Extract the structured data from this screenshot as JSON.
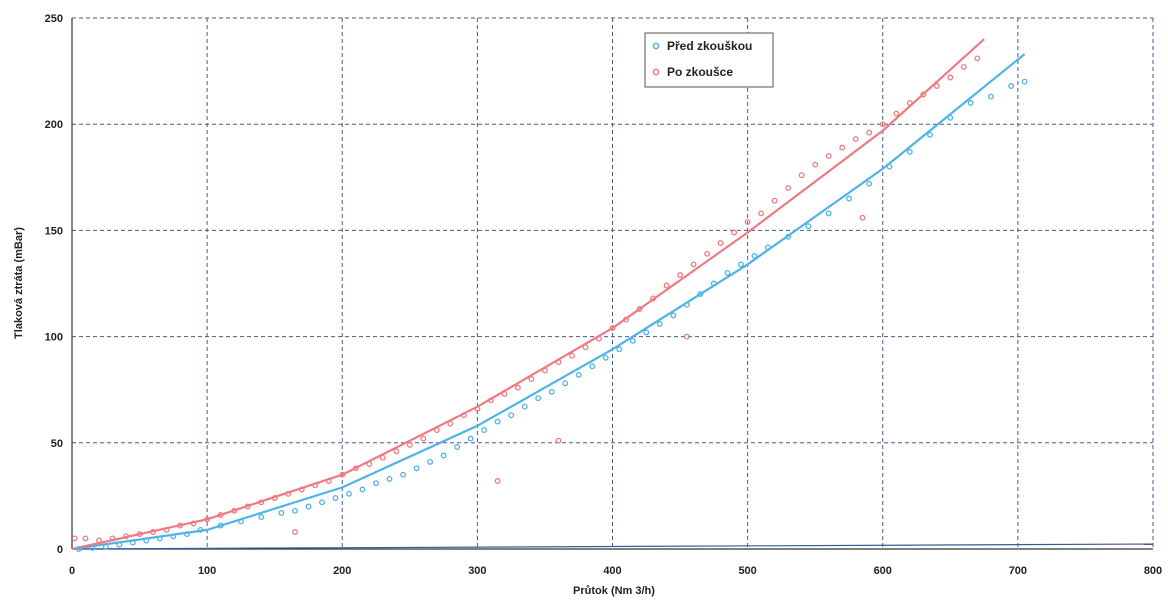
{
  "chart_data": {
    "type": "scatter",
    "title": "",
    "xlabel": "Průtok (Nm 3/h)",
    "ylabel": "Tlaková ztráta (mBar)",
    "xlim": [
      0,
      800
    ],
    "ylim": [
      0,
      250
    ],
    "xticks": [
      0,
      100,
      200,
      300,
      400,
      500,
      600,
      700,
      800
    ],
    "yticks": [
      0,
      50,
      100,
      150,
      200,
      250
    ],
    "grid": true,
    "legend_position": "top-right",
    "series": [
      {
        "name": "Před zkouškou",
        "color": "#4fb3e8",
        "points": [
          [
            5,
            0
          ],
          [
            15,
            0.5
          ],
          [
            25,
            1
          ],
          [
            35,
            2
          ],
          [
            45,
            3
          ],
          [
            55,
            4
          ],
          [
            65,
            5
          ],
          [
            75,
            6
          ],
          [
            85,
            7
          ],
          [
            95,
            9
          ],
          [
            110,
            11
          ],
          [
            125,
            13
          ],
          [
            140,
            15
          ],
          [
            155,
            17
          ],
          [
            165,
            18
          ],
          [
            175,
            20
          ],
          [
            185,
            22
          ],
          [
            195,
            24
          ],
          [
            205,
            26
          ],
          [
            215,
            28
          ],
          [
            225,
            31
          ],
          [
            235,
            33
          ],
          [
            245,
            35
          ],
          [
            255,
            38
          ],
          [
            265,
            41
          ],
          [
            275,
            44
          ],
          [
            285,
            48
          ],
          [
            295,
            52
          ],
          [
            305,
            56
          ],
          [
            315,
            60
          ],
          [
            325,
            63
          ],
          [
            335,
            67
          ],
          [
            345,
            71
          ],
          [
            355,
            74
          ],
          [
            365,
            78
          ],
          [
            375,
            82
          ],
          [
            385,
            86
          ],
          [
            395,
            90
          ],
          [
            405,
            94
          ],
          [
            415,
            98
          ],
          [
            425,
            102
          ],
          [
            435,
            106
          ],
          [
            445,
            110
          ],
          [
            455,
            115
          ],
          [
            465,
            120
          ],
          [
            475,
            125
          ],
          [
            485,
            130
          ],
          [
            495,
            134
          ],
          [
            505,
            138
          ],
          [
            515,
            142
          ],
          [
            530,
            147
          ],
          [
            545,
            152
          ],
          [
            560,
            158
          ],
          [
            575,
            165
          ],
          [
            590,
            172
          ],
          [
            605,
            180
          ],
          [
            620,
            187
          ],
          [
            635,
            195
          ],
          [
            650,
            203
          ],
          [
            665,
            210
          ],
          [
            680,
            213
          ],
          [
            695,
            218
          ],
          [
            705,
            220
          ]
        ],
        "fit": [
          [
            0,
            0
          ],
          [
            100,
            9
          ],
          [
            200,
            29
          ],
          [
            300,
            58
          ],
          [
            400,
            94
          ],
          [
            500,
            134
          ],
          [
            600,
            179
          ],
          [
            705,
            233
          ]
        ]
      },
      {
        "name": "Po zkoušce",
        "color": "#f07a82",
        "points": [
          [
            2,
            5
          ],
          [
            10,
            5
          ],
          [
            20,
            4
          ],
          [
            30,
            5
          ],
          [
            40,
            6
          ],
          [
            50,
            7
          ],
          [
            60,
            8
          ],
          [
            70,
            9
          ],
          [
            80,
            11
          ],
          [
            90,
            12
          ],
          [
            100,
            14
          ],
          [
            110,
            16
          ],
          [
            120,
            18
          ],
          [
            130,
            20
          ],
          [
            140,
            22
          ],
          [
            150,
            24
          ],
          [
            160,
            26
          ],
          [
            165,
            8
          ],
          [
            170,
            28
          ],
          [
            180,
            30
          ],
          [
            190,
            32
          ],
          [
            200,
            35
          ],
          [
            210,
            38
          ],
          [
            220,
            40
          ],
          [
            230,
            43
          ],
          [
            240,
            46
          ],
          [
            250,
            49
          ],
          [
            260,
            52
          ],
          [
            270,
            56
          ],
          [
            280,
            59
          ],
          [
            290,
            63
          ],
          [
            300,
            66
          ],
          [
            310,
            70
          ],
          [
            315,
            32
          ],
          [
            320,
            73
          ],
          [
            330,
            76
          ],
          [
            340,
            80
          ],
          [
            350,
            84
          ],
          [
            360,
            88
          ],
          [
            360,
            51
          ],
          [
            370,
            91
          ],
          [
            380,
            95
          ],
          [
            390,
            99
          ],
          [
            400,
            104
          ],
          [
            410,
            108
          ],
          [
            420,
            113
          ],
          [
            430,
            118
          ],
          [
            440,
            124
          ],
          [
            450,
            129
          ],
          [
            455,
            100
          ],
          [
            460,
            134
          ],
          [
            470,
            139
          ],
          [
            480,
            144
          ],
          [
            490,
            149
          ],
          [
            500,
            154
          ],
          [
            510,
            158
          ],
          [
            520,
            164
          ],
          [
            530,
            170
          ],
          [
            540,
            176
          ],
          [
            550,
            181
          ],
          [
            560,
            185
          ],
          [
            570,
            189
          ],
          [
            580,
            193
          ],
          [
            585,
            156
          ],
          [
            590,
            196
          ],
          [
            600,
            200
          ],
          [
            610,
            205
          ],
          [
            620,
            210
          ],
          [
            630,
            214
          ],
          [
            640,
            218
          ],
          [
            650,
            222
          ],
          [
            660,
            227
          ],
          [
            670,
            231
          ]
        ],
        "fit": [
          [
            0,
            0
          ],
          [
            100,
            14
          ],
          [
            200,
            35
          ],
          [
            300,
            67
          ],
          [
            400,
            104
          ],
          [
            500,
            149
          ],
          [
            600,
            197
          ],
          [
            675,
            240
          ]
        ]
      }
    ]
  }
}
